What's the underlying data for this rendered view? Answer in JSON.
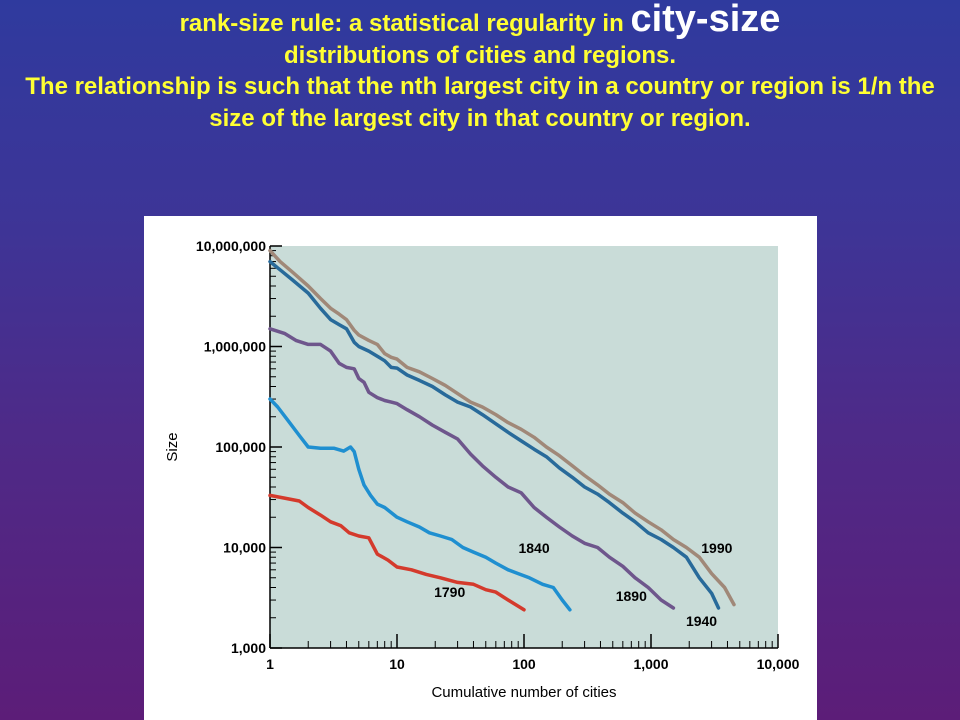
{
  "heading": {
    "part1": "rank-size rule: a statistical regularity in ",
    "emphasis": "city-size",
    "part2": "distributions of cities and regions.",
    "part3": "The relationship is such that the nth largest city in a country or region is 1/n the size of the largest city in that country or region."
  },
  "chart_data": {
    "type": "line",
    "xscale": "log",
    "yscale": "log",
    "xlabel": "Cumulative number of cities",
    "ylabel": "Size",
    "xlim": [
      1,
      10000
    ],
    "ylim": [
      1000,
      10000000
    ],
    "xticks": [
      {
        "value": 1,
        "label": "1"
      },
      {
        "value": 10,
        "label": "10"
      },
      {
        "value": 100,
        "label": "100"
      },
      {
        "value": 1000,
        "label": "1,000"
      },
      {
        "value": 10000,
        "label": "10,000"
      }
    ],
    "yticks": [
      {
        "value": 1000,
        "label": "1,000"
      },
      {
        "value": 10000,
        "label": "10,000"
      },
      {
        "value": 100000,
        "label": "100,000"
      },
      {
        "value": 1000000,
        "label": "1,000,000"
      },
      {
        "value": 10000000,
        "label": "10,000,000"
      }
    ],
    "grid": false,
    "plot_background": "#c9dcd8",
    "series": [
      {
        "name": "1790",
        "color": "#d43a2c",
        "x": [
          1,
          1.3,
          1.7,
          2,
          2.5,
          3,
          3.6,
          4.2,
          5,
          6,
          7,
          8.5,
          10,
          13,
          17,
          22,
          30,
          40,
          50,
          60,
          75,
          100
        ],
        "y": [
          33000,
          31000,
          29000,
          25000,
          21000,
          18000,
          16500,
          14000,
          13000,
          12500,
          8600,
          7500,
          6400,
          6000,
          5400,
          5000,
          4500,
          4300,
          3800,
          3600,
          3000,
          2400
        ]
      },
      {
        "name": "1840",
        "color": "#1f8fd0",
        "x": [
          1,
          1.15,
          1.4,
          1.7,
          2,
          2.5,
          3.2,
          3.8,
          4.3,
          4.6,
          5,
          5.5,
          6.2,
          7,
          8,
          10,
          12,
          15,
          18,
          22,
          27,
          33,
          40,
          50,
          60,
          75,
          90,
          110,
          140,
          170,
          200,
          230
        ],
        "y": [
          300000,
          250000,
          180000,
          130000,
          100000,
          97000,
          97000,
          91000,
          100000,
          90000,
          60000,
          42000,
          33000,
          27000,
          25000,
          20000,
          18000,
          16000,
          14000,
          13000,
          12000,
          10000,
          9000,
          8000,
          7000,
          6000,
          5500,
          5000,
          4300,
          4000,
          3000,
          2400
        ]
      },
      {
        "name": "1890",
        "color": "#6e568c",
        "x": [
          1,
          1.3,
          1.6,
          2,
          2.5,
          3,
          3.5,
          4,
          4.6,
          5,
          5.5,
          6,
          7,
          8,
          9,
          10,
          12,
          15,
          19,
          24,
          30,
          38,
          47,
          60,
          75,
          95,
          120,
          150,
          190,
          240,
          300,
          380,
          470,
          600,
          750,
          950,
          1200,
          1500
        ],
        "y": [
          1500000,
          1350000,
          1150000,
          1050000,
          1050000,
          900000,
          680000,
          620000,
          600000,
          480000,
          440000,
          350000,
          310000,
          290000,
          280000,
          270000,
          235000,
          200000,
          165000,
          140000,
          120000,
          85000,
          65000,
          50000,
          40000,
          35000,
          25000,
          20000,
          16000,
          13000,
          11000,
          10000,
          8000,
          6500,
          5000,
          4000,
          3000,
          2500
        ]
      },
      {
        "name": "1940",
        "color": "#286a9a",
        "x": [
          1,
          1.2,
          1.5,
          2,
          2.5,
          3,
          3.5,
          4,
          4.6,
          5,
          6,
          7,
          8,
          9,
          10,
          12,
          15,
          19,
          24,
          30,
          38,
          47,
          60,
          75,
          95,
          120,
          150,
          190,
          240,
          300,
          380,
          470,
          600,
          750,
          950,
          1200,
          1500,
          1900,
          2400,
          3000,
          3400
        ],
        "y": [
          7000000,
          5800000,
          4600000,
          3400000,
          2400000,
          1850000,
          1650000,
          1500000,
          1100000,
          1000000,
          900000,
          800000,
          720000,
          620000,
          610000,
          520000,
          460000,
          400000,
          330000,
          280000,
          250000,
          210000,
          170000,
          140000,
          115000,
          95000,
          80000,
          62000,
          50000,
          40000,
          34000,
          28000,
          22000,
          18000,
          14000,
          12000,
          10000,
          8000,
          5000,
          3500,
          2500
        ]
      },
      {
        "name": "1990",
        "color": "#a08878",
        "x": [
          1,
          1.2,
          1.5,
          2,
          2.5,
          3,
          3.5,
          4,
          4.6,
          5,
          6,
          7,
          8,
          9,
          10,
          12,
          15,
          19,
          24,
          30,
          38,
          47,
          60,
          75,
          95,
          120,
          150,
          190,
          240,
          300,
          380,
          470,
          600,
          750,
          950,
          1200,
          1500,
          1900,
          2400,
          3000,
          3800,
          4500
        ],
        "y": [
          9000000,
          7000000,
          5500000,
          4000000,
          3000000,
          2400000,
          2100000,
          1850000,
          1450000,
          1300000,
          1150000,
          1050000,
          850000,
          780000,
          750000,
          620000,
          560000,
          480000,
          410000,
          340000,
          280000,
          250000,
          210000,
          175000,
          150000,
          125000,
          100000,
          82000,
          65000,
          52000,
          42000,
          34000,
          28000,
          22000,
          18000,
          15000,
          12000,
          10000,
          8000,
          5500,
          4000,
          2700
        ]
      }
    ],
    "series_label_positions": [
      {
        "name": "1790",
        "x": 26,
        "y": 3200
      },
      {
        "name": "1840",
        "x": 120,
        "y": 8800
      },
      {
        "name": "1890",
        "x": 700,
        "y": 2950
      },
      {
        "name": "1940",
        "x": 2500,
        "y": 1650
      },
      {
        "name": "1990",
        "x": 3300,
        "y": 8800
      }
    ]
  }
}
